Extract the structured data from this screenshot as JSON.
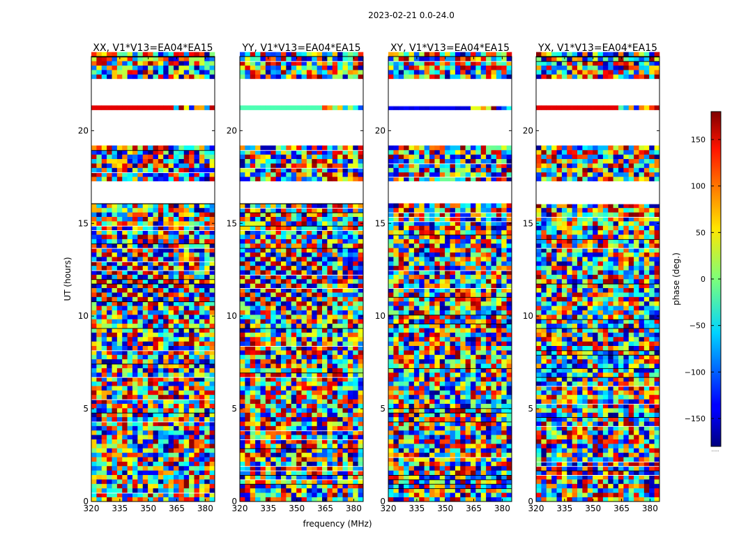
{
  "figure": {
    "suptitle": "2023-02-21 0.0-24.0",
    "xlabel": "frequency (MHz)",
    "ylabel": "UT (hours)",
    "colorbar_label": "phase (deg.)",
    "colorbar_ticks": [
      "150",
      "100",
      "50",
      "0",
      "−50",
      "−100",
      "−150"
    ],
    "colorbar_note": "......"
  },
  "chart_data": [
    {
      "type": "heatmap",
      "title": "XX, V1*V13=EA04*EA15",
      "xlabel": "frequency (MHz)",
      "ylabel": "UT (hours)",
      "xlim": [
        320,
        385
      ],
      "ylim": [
        0,
        24
      ],
      "xticks": [
        "320",
        "335",
        "350",
        "365",
        "380"
      ],
      "yticks": [
        "0",
        "5",
        "10",
        "15",
        "20"
      ],
      "value_range": [
        -180,
        180
      ],
      "colormap": "jet",
      "value_label": "phase (deg.)"
    },
    {
      "type": "heatmap",
      "title": "YY, V1*V13=EA04*EA15",
      "xlabel": "frequency (MHz)",
      "ylabel": "UT (hours)",
      "xlim": [
        320,
        385
      ],
      "ylim": [
        0,
        24
      ],
      "xticks": [
        "320",
        "335",
        "350",
        "365",
        "380"
      ],
      "yticks": [
        "0",
        "5",
        "10",
        "15",
        "20"
      ],
      "value_range": [
        -180,
        180
      ],
      "colormap": "jet",
      "value_label": "phase (deg.)"
    },
    {
      "type": "heatmap",
      "title": "XY, V1*V13=EA04*EA15",
      "xlabel": "frequency (MHz)",
      "ylabel": "UT (hours)",
      "xlim": [
        320,
        385
      ],
      "ylim": [
        0,
        24
      ],
      "xticks": [
        "320",
        "335",
        "350",
        "365",
        "380"
      ],
      "yticks": [
        "0",
        "5",
        "10",
        "15",
        "20"
      ],
      "value_range": [
        -180,
        180
      ],
      "colormap": "jet",
      "value_label": "phase (deg.)"
    },
    {
      "type": "heatmap",
      "title": "YX, V1*V13=EA04*EA15",
      "xlabel": "frequency (MHz)",
      "ylabel": "UT (hours)",
      "xlim": [
        320,
        385
      ],
      "ylim": [
        0,
        24
      ],
      "xticks": [
        "320",
        "335",
        "350",
        "365",
        "380"
      ],
      "yticks": [
        "0",
        "5",
        "10",
        "15",
        "20"
      ],
      "value_range": [
        -180,
        180
      ],
      "colormap": "jet",
      "value_label": "phase (deg.)"
    }
  ]
}
